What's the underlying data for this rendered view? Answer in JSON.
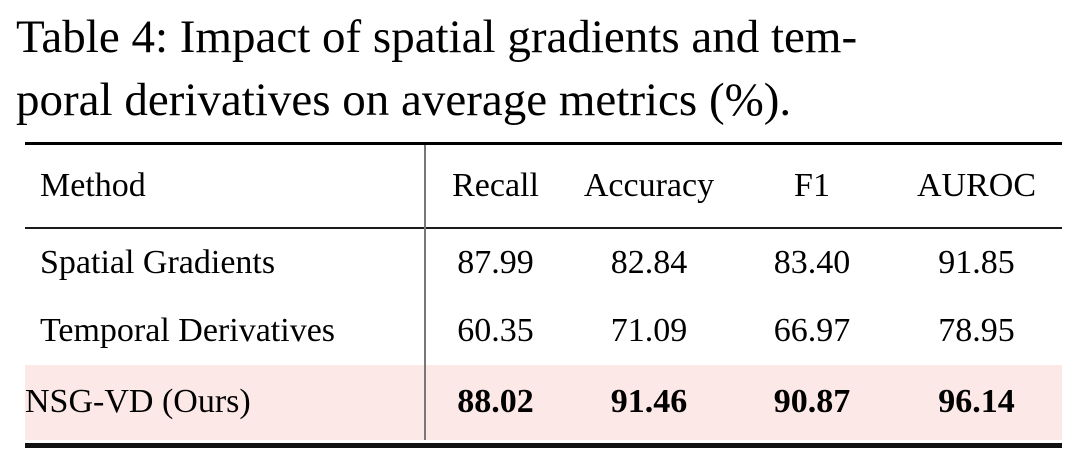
{
  "caption": {
    "line1": "Table 4: Impact of spatial gradients and tem-",
    "line2": "poral derivatives on average metrics (%)."
  },
  "table": {
    "columns": [
      "Method",
      "Recall",
      "Accuracy",
      "F1",
      "AUROC"
    ],
    "rows": [
      [
        "Spatial Gradients",
        "87.99",
        "82.84",
        "83.40",
        "91.85"
      ],
      [
        "Temporal Derivatives",
        "60.35",
        "71.09",
        "66.97",
        "78.95"
      ],
      [
        "NSG-VD (Ours)",
        "88.02",
        "91.46",
        "90.87",
        "96.14"
      ]
    ],
    "highlighted_row": "NSG-VD (Ours)",
    "highlight_color": "#fce8e7"
  }
}
